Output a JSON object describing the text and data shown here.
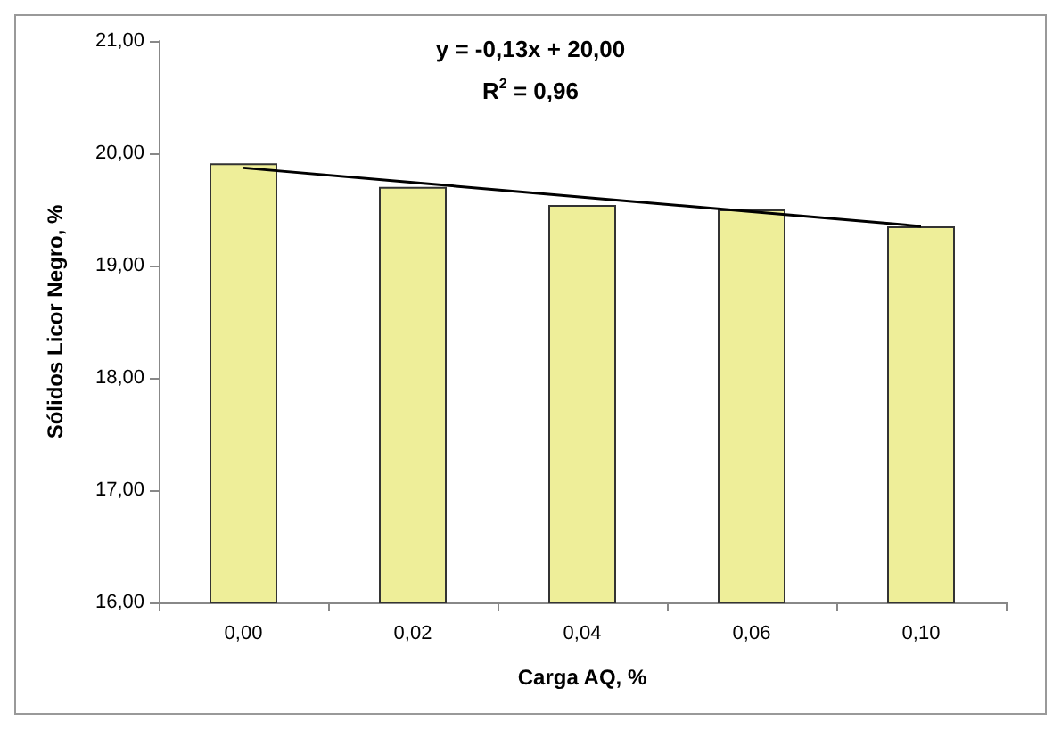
{
  "chart_data": {
    "type": "bar",
    "xlabel": "Carga AQ, %",
    "ylabel": "Sólidos Licor Negro, %",
    "categories": [
      "0,00",
      "0,02",
      "0,04",
      "0,06",
      "0,10"
    ],
    "series": [
      {
        "color": "#eeee99",
        "values": [
          19.91,
          19.7,
          19.54,
          19.5,
          19.35
        ]
      },
      {
        "type": "line",
        "color": "#000000",
        "values": [
          19.87,
          19.74,
          19.61,
          19.48,
          19.35
        ],
        "marker": "none"
      }
    ],
    "ylim": [
      16,
      21
    ],
    "yticks": [
      {
        "value": 16,
        "label": "16,00"
      },
      {
        "value": 17,
        "label": "17,00"
      },
      {
        "value": 18,
        "label": "18,00"
      },
      {
        "value": 19,
        "label": "19,00"
      },
      {
        "value": 20,
        "label": "20,00"
      },
      {
        "value": 21,
        "label": "21,00"
      }
    ],
    "annotations": [
      "y = -0,13x + 20,00",
      "R$^{2}$ = 0,96"
    ],
    "grid": false
  }
}
